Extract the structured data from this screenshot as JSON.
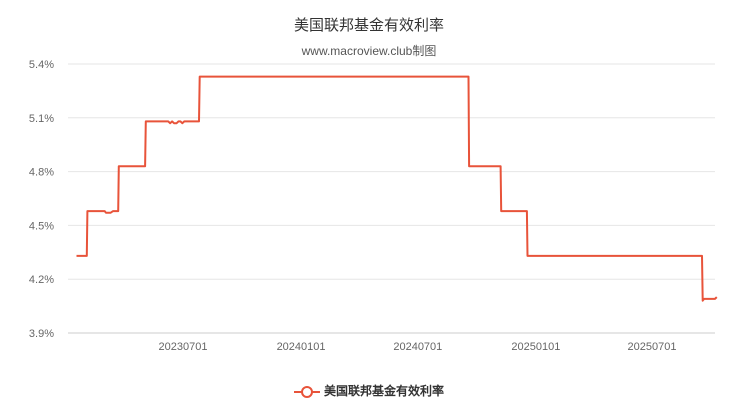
{
  "chart_data": {
    "type": "line",
    "title": "美国联邦基金有效利率",
    "subtitle": "www.macroview.club制图",
    "xlabel": "",
    "ylabel": "",
    "ylim": [
      3.9,
      5.4
    ],
    "yticks": [
      "3.9%",
      "4.2%",
      "4.5%",
      "4.8%",
      "5.1%",
      "5.4%"
    ],
    "ytick_values": [
      3.9,
      4.2,
      4.5,
      4.8,
      5.1,
      5.4
    ],
    "xticks": [
      "20230701",
      "20240101",
      "20240701",
      "20250101",
      "20250701"
    ],
    "grid": true,
    "legend_position": "bottom",
    "color": "#e8533a",
    "series": [
      {
        "name": "美国联邦基金有效利率",
        "points": [
          [
            "2023-01-16",
            4.33
          ],
          [
            "2023-02-01",
            4.33
          ],
          [
            "2023-02-02",
            4.58
          ],
          [
            "2023-03-01",
            4.58
          ],
          [
            "2023-03-03",
            4.57
          ],
          [
            "2023-03-10",
            4.57
          ],
          [
            "2023-03-14",
            4.58
          ],
          [
            "2023-03-22",
            4.58
          ],
          [
            "2023-03-23",
            4.83
          ],
          [
            "2023-05-03",
            4.83
          ],
          [
            "2023-05-04",
            5.08
          ],
          [
            "2023-06-08",
            5.08
          ],
          [
            "2023-06-11",
            5.07
          ],
          [
            "2023-06-14",
            5.08
          ],
          [
            "2023-06-17",
            5.07
          ],
          [
            "2023-06-21",
            5.07
          ],
          [
            "2023-06-24",
            5.08
          ],
          [
            "2023-06-27",
            5.08
          ],
          [
            "2023-06-30",
            5.07
          ],
          [
            "2023-07-03",
            5.08
          ],
          [
            "2023-07-26",
            5.08
          ],
          [
            "2023-07-27",
            5.33
          ],
          [
            "2024-09-18",
            5.33
          ],
          [
            "2024-09-19",
            4.83
          ],
          [
            "2024-11-07",
            4.83
          ],
          [
            "2024-11-08",
            4.58
          ],
          [
            "2024-12-18",
            4.58
          ],
          [
            "2024-12-19",
            4.33
          ],
          [
            "2025-09-17",
            4.33
          ],
          [
            "2025-09-18",
            4.08
          ],
          [
            "2025-09-20",
            4.09
          ],
          [
            "2025-10-07",
            4.09
          ],
          [
            "2025-10-10",
            4.1
          ]
        ]
      }
    ]
  }
}
